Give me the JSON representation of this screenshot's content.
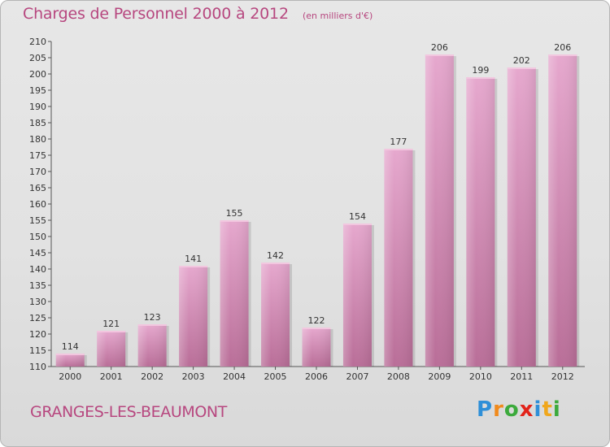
{
  "title": "Charges de Personnel 2000 à 2012",
  "unit_note": "(en milliers d'€)",
  "place_name": "GRANGES-LES-BEAUMONT",
  "logo": {
    "letters": [
      {
        "ch": "P",
        "color": "#2e8fd8"
      },
      {
        "ch": "r",
        "color": "#f08a1c"
      },
      {
        "ch": "o",
        "color": "#3caa3c"
      },
      {
        "ch": "x",
        "color": "#e2231a"
      },
      {
        "ch": "i",
        "color": "#2e8fd8"
      },
      {
        "ch": "t",
        "color": "#f0a71c"
      },
      {
        "ch": "i",
        "color": "#3caa3c"
      }
    ]
  },
  "chart_data": {
    "type": "bar",
    "categories": [
      "2000",
      "2001",
      "2002",
      "2003",
      "2004",
      "2005",
      "2006",
      "2007",
      "2008",
      "2009",
      "2010",
      "2011",
      "2012"
    ],
    "values": [
      114,
      121,
      123,
      141,
      155,
      142,
      122,
      154,
      177,
      206,
      199,
      202,
      206
    ],
    "title": "Charges de Personnel 2000 à 2012",
    "subtitle": "(en milliers d'€)",
    "xlabel": "",
    "ylabel": "",
    "ylim": [
      110,
      210
    ],
    "ytick_step": 5,
    "grid": false,
    "legend": "none",
    "bar_color": "#d98fb8"
  }
}
